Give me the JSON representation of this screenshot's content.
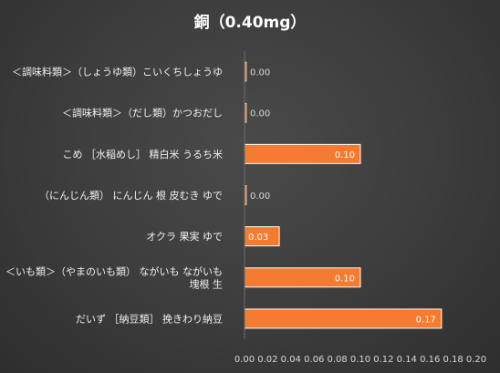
{
  "chart_data": {
    "type": "bar",
    "orientation": "horizontal",
    "title": "銅（0.40mg）",
    "categories": [
      "＜調味料類＞（しょうゆ類）こいくちしょうゆ",
      "＜調味料類＞（だし類）かつおだし",
      "こめ ［水稲めし］ 精白米 うるち米",
      "（にんじん類） にんじん 根 皮むき ゆで",
      "オクラ 果実 ゆで",
      "＜いも類＞（やまのいも類） ながいも ながいも 塊根 生",
      "だいず ［納豆類］ 挽きわり納豆"
    ],
    "category_lines": [
      [
        "＜調味料類＞（しょうゆ類）こいくちしょうゆ"
      ],
      [
        "＜調味料類＞（だし類）かつおだし"
      ],
      [
        "こめ ［水稲めし］ 精白米 うるち米"
      ],
      [
        "（にんじん類） にんじん 根 皮むき ゆで"
      ],
      [
        "オクラ 果実 ゆで"
      ],
      [
        "＜いも類＞（やまのいも類） ながいも ながいも",
        "塊根 生"
      ],
      [
        "だいず ［納豆類］ 挽きわり納豆"
      ]
    ],
    "values": [
      0.0,
      0.0,
      0.1,
      0.0,
      0.03,
      0.1,
      0.17
    ],
    "data_labels": [
      "0.00",
      "0.00",
      "0.10",
      "0.00",
      "0.03",
      "0.10",
      "0.17"
    ],
    "xlim": [
      0,
      0.2
    ],
    "xticks": [
      "0.00",
      "0.02",
      "0.04",
      "0.06",
      "0.08",
      "0.10",
      "0.12",
      "0.14",
      "0.16",
      "0.18",
      "0.20"
    ],
    "grid": false,
    "legend": "none",
    "colors": {
      "bar_fill": "#f47b30",
      "bar_edge": "#ffffff",
      "label_on_bar": "#ffffff",
      "label_off_bar": "#d8d8d8"
    }
  }
}
